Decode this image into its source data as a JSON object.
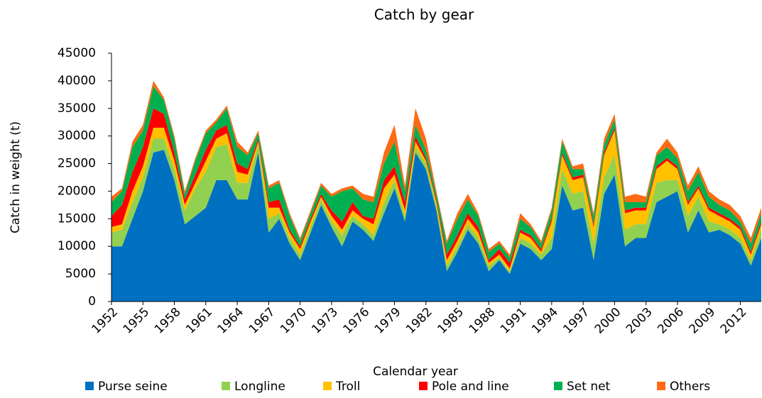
{
  "chart_data": {
    "type": "stacked_area",
    "title": "Catch by gear",
    "xlabel": "Calendar year",
    "ylabel": "Catch in weight (t)",
    "x": [
      1952,
      1953,
      1954,
      1955,
      1956,
      1957,
      1958,
      1959,
      1960,
      1961,
      1962,
      1963,
      1964,
      1965,
      1966,
      1967,
      1968,
      1969,
      1970,
      1971,
      1972,
      1973,
      1974,
      1975,
      1976,
      1977,
      1978,
      1979,
      1980,
      1981,
      1982,
      1983,
      1984,
      1985,
      1986,
      1987,
      1988,
      1989,
      1990,
      1991,
      1992,
      1993,
      1994,
      1995,
      1996,
      1997,
      1998,
      1999,
      2000,
      2001,
      2002,
      2003,
      2004,
      2005,
      2006,
      2007,
      2008,
      2009,
      2010,
      2011,
      2012,
      2013,
      2014
    ],
    "xlim": [
      1952,
      2014
    ],
    "xticks": [
      1952,
      1955,
      1958,
      1961,
      1964,
      1967,
      1970,
      1973,
      1976,
      1979,
      1982,
      1985,
      1988,
      1991,
      1994,
      1997,
      2000,
      2003,
      2006,
      2009,
      2012
    ],
    "ylim": [
      0,
      45000
    ],
    "yticks": [
      0,
      5000,
      10000,
      15000,
      20000,
      25000,
      30000,
      35000,
      40000,
      45000
    ],
    "legend": "bottom",
    "series": [
      {
        "name": "Purse seine",
        "color": "#0070c0",
        "values": [
          10000,
          10000,
          15000,
          20000,
          27000,
          27500,
          22000,
          14000,
          15500,
          17000,
          22000,
          22000,
          18500,
          18500,
          27000,
          12500,
          15000,
          10500,
          7500,
          12500,
          17500,
          13500,
          10000,
          14500,
          13000,
          11000,
          16000,
          20500,
          14500,
          27000,
          24000,
          16500,
          5500,
          9000,
          13000,
          10500,
          5500,
          7500,
          5000,
          10500,
          9500,
          7500,
          9500,
          21000,
          16500,
          17000,
          7500,
          19500,
          23000,
          10000,
          11500,
          11500,
          18000,
          19000,
          20000,
          12500,
          16500,
          12500,
          13000,
          12000,
          10500,
          6500,
          11500
        ]
      },
      {
        "name": "Longline",
        "color": "#92d050",
        "values": [
          2500,
          3000,
          3000,
          2500,
          2500,
          2000,
          2000,
          2500,
          5000,
          6500,
          6000,
          6500,
          3000,
          3000,
          1500,
          2500,
          1000,
          1000,
          1000,
          1000,
          1000,
          1000,
          2000,
          1000,
          1000,
          1000,
          2000,
          1500,
          1000,
          1000,
          1000,
          1000,
          1000,
          1000,
          1000,
          1000,
          1000,
          500,
          500,
          1000,
          1000,
          1000,
          2000,
          3000,
          3000,
          3000,
          3000,
          3000,
          3500,
          3000,
          2500,
          2500,
          3500,
          3000,
          2000,
          3000,
          2500,
          2000,
          1000,
          1000,
          1000,
          1000,
          1500
        ]
      },
      {
        "name": "Troll",
        "color": "#ffc000",
        "values": [
          1000,
          1000,
          2000,
          2000,
          2000,
          2000,
          1500,
          1000,
          1000,
          2000,
          1500,
          2000,
          2000,
          1500,
          500,
          2000,
          1000,
          1000,
          1000,
          1000,
          500,
          1000,
          1000,
          1000,
          1000,
          2000,
          2500,
          1000,
          1000,
          1000,
          500,
          500,
          1000,
          1000,
          1000,
          1000,
          500,
          500,
          500,
          1000,
          1000,
          500,
          3000,
          2500,
          2500,
          2500,
          3000,
          4000,
          4500,
          3000,
          2500,
          2500,
          2500,
          3500,
          2000,
          2000,
          1500,
          2000,
          1500,
          1500,
          1500,
          1000,
          1000
        ]
      },
      {
        "name": "Pole and line",
        "color": "#ff0000",
        "values": [
          2000,
          3500,
          3500,
          3500,
          3500,
          2500,
          1500,
          1000,
          1500,
          2000,
          1500,
          1500,
          1500,
          1000,
          500,
          1000,
          1500,
          500,
          500,
          500,
          500,
          1000,
          1500,
          1500,
          500,
          1000,
          1500,
          1500,
          1500,
          1000,
          500,
          500,
          1000,
          1000,
          1000,
          1000,
          500,
          1000,
          1000,
          500,
          500,
          500,
          500,
          500,
          500,
          500,
          500,
          500,
          500,
          500,
          500,
          500,
          500,
          500,
          500,
          500,
          500,
          500,
          500,
          500,
          500,
          500,
          500
        ]
      },
      {
        "name": "Set net",
        "color": "#00b050",
        "values": [
          2500,
          2500,
          4500,
          3000,
          4000,
          2500,
          2500,
          1000,
          2500,
          3000,
          1500,
          3000,
          3000,
          2500,
          1000,
          2500,
          3000,
          2500,
          1000,
          1000,
          1500,
          2500,
          5500,
          2500,
          3000,
          3000,
          3000,
          4500,
          2000,
          2000,
          1500,
          1000,
          2000,
          3000,
          2500,
          2000,
          1500,
          1000,
          1000,
          2000,
          1500,
          1000,
          1500,
          2000,
          1500,
          1000,
          1500,
          1500,
          1500,
          1500,
          1000,
          1000,
          2000,
          2000,
          1500,
          2000,
          2500,
          2000,
          1500,
          1500,
          1000,
          1500,
          1500
        ]
      },
      {
        "name": "Others",
        "color": "#ff6a13",
        "values": [
          1000,
          500,
          1000,
          1000,
          1000,
          500,
          500,
          500,
          500,
          500,
          500,
          500,
          1000,
          500,
          500,
          500,
          500,
          500,
          500,
          500,
          500,
          500,
          500,
          500,
          1000,
          1000,
          2000,
          3000,
          1000,
          3000,
          2000,
          500,
          500,
          1000,
          1000,
          500,
          500,
          500,
          500,
          1000,
          500,
          500,
          500,
          500,
          500,
          1000,
          500,
          1000,
          1000,
          1000,
          1500,
          1000,
          500,
          1500,
          1000,
          1000,
          1000,
          1000,
          1000,
          1000,
          1000,
          1000,
          1000
        ]
      }
    ]
  }
}
